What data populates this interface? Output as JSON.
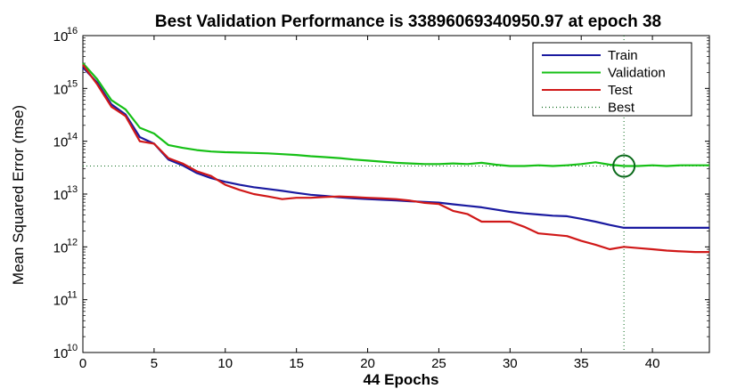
{
  "chart_data": {
    "type": "line",
    "title": "Best Validation Performance is 33896069340950.97 at epoch 38",
    "xlabel": "44 Epochs",
    "ylabel": "Mean Squared Error  (mse)",
    "xlim": [
      0,
      44
    ],
    "ylim": [
      10000000000.0,
      1e+16
    ],
    "yscale": "log",
    "grid": false,
    "legend_position": "top-right",
    "x_ticks": [
      "0",
      "5",
      "10",
      "15",
      "20",
      "25",
      "30",
      "35",
      "40"
    ],
    "y_ticks": [
      {
        "base": "10",
        "exp": "10",
        "value": 10000000000.0
      },
      {
        "base": "10",
        "exp": "11",
        "value": 100000000000.0
      },
      {
        "base": "10",
        "exp": "12",
        "value": 1000000000000.0
      },
      {
        "base": "10",
        "exp": "13",
        "value": 10000000000000.0
      },
      {
        "base": "10",
        "exp": "14",
        "value": 100000000000000.0
      },
      {
        "base": "10",
        "exp": "15",
        "value": 1000000000000000.0
      },
      {
        "base": "10",
        "exp": "16",
        "value": 1e+16
      }
    ],
    "x": [
      0,
      1,
      2,
      3,
      4,
      5,
      6,
      7,
      8,
      9,
      10,
      11,
      12,
      13,
      14,
      15,
      16,
      17,
      18,
      19,
      20,
      21,
      22,
      23,
      24,
      25,
      26,
      27,
      28,
      29,
      30,
      31,
      32,
      33,
      34,
      35,
      36,
      37,
      38,
      39,
      40,
      41,
      42,
      43,
      44
    ],
    "series": [
      {
        "name": "Train",
        "color": "#1a1aa0",
        "values": [
          2500000000000000.0,
          1300000000000000.0,
          500000000000000.0,
          320000000000000.0,
          120000000000000.0,
          90000000000000.0,
          45000000000000.0,
          35000000000000.0,
          25000000000000.0,
          20000000000000.0,
          17000000000000.0,
          15000000000000.0,
          13500000000000.0,
          12500000000000.0,
          11500000000000.0,
          10500000000000.0,
          9700000000000.0,
          9200000000000.0,
          8700000000000.0,
          8300000000000.0,
          8000000000000.0,
          7800000000000.0,
          7600000000000.0,
          7300000000000.0,
          7100000000000.0,
          6900000000000.0,
          6400000000000.0,
          6000000000000.0,
          5600000000000.0,
          5100000000000.0,
          4600000000000.0,
          4300000000000.0,
          4100000000000.0,
          3900000000000.0,
          3800000000000.0,
          3400000000000.0,
          3000000000000.0,
          2600000000000.0,
          2300000000000.0,
          2300000000000.0,
          2300000000000.0,
          2300000000000.0,
          2300000000000.0,
          2300000000000.0,
          2300000000000.0
        ]
      },
      {
        "name": "Validation",
        "color": "#16c016",
        "values": [
          3000000000000000.0,
          1500000000000000.0,
          600000000000000.0,
          400000000000000.0,
          180000000000000.0,
          140000000000000.0,
          85000000000000.0,
          75000000000000.0,
          68000000000000.0,
          64000000000000.0,
          62000000000000.0,
          61000000000000.0,
          60000000000000.0,
          59000000000000.0,
          57000000000000.0,
          55000000000000.0,
          52000000000000.0,
          50000000000000.0,
          48000000000000.0,
          45000000000000.0,
          43000000000000.0,
          41000000000000.0,
          39000000000000.0,
          38000000000000.0,
          37000000000000.0,
          37000000000000.0,
          38000000000000.0,
          37000000000000.0,
          39000000000000.0,
          36000000000000.0,
          34000000000000.0,
          34000000000000.0,
          35000000000000.0,
          34000000000000.0,
          35000000000000.0,
          37000000000000.0,
          40000000000000.0,
          36000000000000.0,
          33900000000000.0,
          34000000000000.0,
          35000000000000.0,
          34000000000000.0,
          35000000000000.0,
          35000000000000.0,
          35000000000000.0
        ]
      },
      {
        "name": "Test",
        "color": "#d01818",
        "values": [
          2800000000000000.0,
          1200000000000000.0,
          450000000000000.0,
          300000000000000.0,
          100000000000000.0,
          90000000000000.0,
          48000000000000.0,
          38000000000000.0,
          27000000000000.0,
          22000000000000.0,
          15000000000000.0,
          12000000000000.0,
          10000000000000.0,
          9000000000000.0,
          8000000000000.0,
          8500000000000.0,
          8500000000000.0,
          8800000000000.0,
          9000000000000.0,
          8800000000000.0,
          8500000000000.0,
          8300000000000.0,
          8000000000000.0,
          7500000000000.0,
          6800000000000.0,
          6500000000000.0,
          4800000000000.0,
          4200000000000.0,
          3000000000000.0,
          3000000000000.0,
          3000000000000.0,
          2400000000000.0,
          1800000000000.0,
          1700000000000.0,
          1600000000000.0,
          1300000000000.0,
          1100000000000.0,
          900000000000.0,
          1000000000000.0,
          950000000000.0,
          900000000000.0,
          850000000000.0,
          820000000000.0,
          800000000000.0,
          800000000000.0
        ]
      }
    ],
    "best": {
      "name": "Best",
      "epoch": 38,
      "value": 33896069340950.97,
      "color": "#0a6a1a"
    }
  }
}
